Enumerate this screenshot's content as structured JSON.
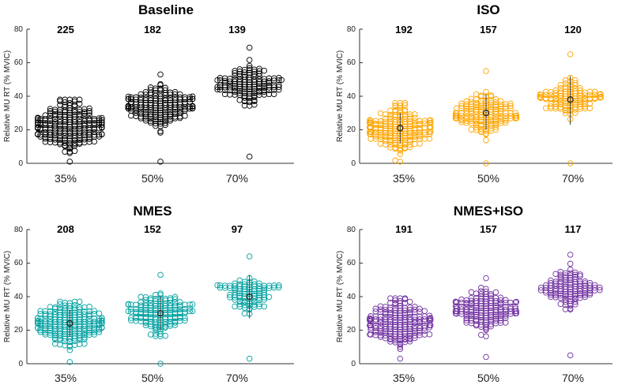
{
  "chart_data": [
    {
      "type": "scatter",
      "title": "Baseline",
      "ylabel": "Relative MU RT (% MVIC)",
      "ylim": [
        0,
        80
      ],
      "yticks": [
        0,
        20,
        40,
        60,
        80
      ],
      "categories": [
        "35%",
        "50%",
        "70%"
      ],
      "counts": [
        "225",
        "182",
        "139"
      ],
      "color": "#000000",
      "series": [
        {
          "name": "35%",
          "n": 225,
          "min": 1,
          "max": 38,
          "median": 22,
          "spread": 23
        },
        {
          "name": "50%",
          "n": 182,
          "min": 1,
          "max": 53,
          "median": 34,
          "spread": 20
        },
        {
          "name": "70%",
          "n": 139,
          "min": 4,
          "max": 69,
          "median": 47,
          "spread": 17
        }
      ],
      "summary": []
    },
    {
      "type": "scatter",
      "title": "ISO",
      "ylabel": "Relative MU RT (% MVIC)",
      "ylim": [
        0,
        80
      ],
      "yticks": [
        0,
        20,
        40,
        60,
        80
      ],
      "categories": [
        "35%",
        "50%",
        "70%"
      ],
      "counts": [
        "192",
        "157",
        "120"
      ],
      "color": "#FFA500",
      "series": [
        {
          "name": "35%",
          "n": 192,
          "min": 1,
          "max": 36,
          "median": 21,
          "spread": 22
        },
        {
          "name": "50%",
          "n": 157,
          "min": 0,
          "max": 55,
          "median": 29,
          "spread": 20
        },
        {
          "name": "70%",
          "n": 120,
          "min": 0,
          "max": 65,
          "median": 38,
          "spread": 17
        }
      ],
      "summary": [
        {
          "mean": 21,
          "low": 12,
          "high": 30
        },
        {
          "mean": 30,
          "low": 20,
          "high": 41
        },
        {
          "mean": 38,
          "low": 23,
          "high": 52
        }
      ]
    },
    {
      "type": "scatter",
      "title": "NMES",
      "ylabel": "Relative MU RT (% MVIC)",
      "ylim": [
        0,
        80
      ],
      "yticks": [
        0,
        20,
        40,
        60,
        80
      ],
      "categories": [
        "35%",
        "50%",
        "70%"
      ],
      "counts": [
        "208",
        "152",
        "97"
      ],
      "color": "#00A0A0",
      "series": [
        {
          "name": "35%",
          "n": 208,
          "min": 1,
          "max": 37,
          "median": 24,
          "spread": 22
        },
        {
          "name": "50%",
          "n": 152,
          "min": 0,
          "max": 53,
          "median": 30,
          "spread": 20
        },
        {
          "name": "70%",
          "n": 97,
          "min": 3,
          "max": 64,
          "median": 42,
          "spread": 17
        }
      ],
      "summary": [
        {
          "mean": 24,
          "low": 16,
          "high": 32
        },
        {
          "mean": 30,
          "low": 20,
          "high": 40
        },
        {
          "mean": 40,
          "low": 27,
          "high": 53
        }
      ]
    },
    {
      "type": "scatter",
      "title": "NMES+ISO",
      "ylabel": "Relative MU RT (% MVIC)",
      "ylim": [
        0,
        80
      ],
      "yticks": [
        0,
        20,
        40,
        60,
        80
      ],
      "categories": [
        "35%",
        "50%",
        "70%"
      ],
      "counts": [
        "191",
        "157",
        "117"
      ],
      "color": "#7030A0",
      "series": [
        {
          "name": "35%",
          "n": 191,
          "min": 3,
          "max": 39,
          "median": 24,
          "spread": 22
        },
        {
          "name": "50%",
          "n": 157,
          "min": 4,
          "max": 51,
          "median": 32,
          "spread": 20
        },
        {
          "name": "70%",
          "n": 117,
          "min": 5,
          "max": 65,
          "median": 45,
          "spread": 17
        }
      ],
      "summary": []
    }
  ]
}
